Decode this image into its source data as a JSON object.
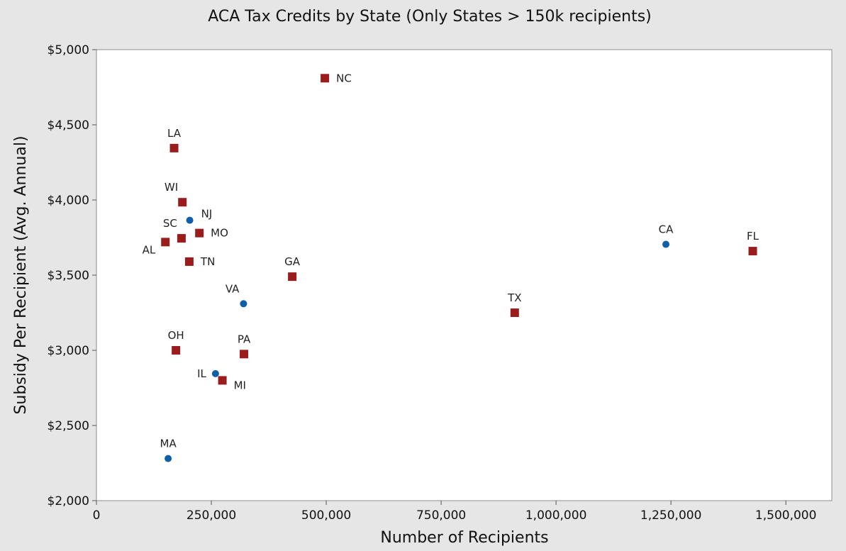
{
  "chart_data": {
    "type": "scatter",
    "title": "ACA Tax Credits by State (Only States > 150k recipients)",
    "xlabel": "Number of Recipients",
    "ylabel": "Subsidy Per Recipient (Avg. Annual)",
    "xlim": [
      0,
      1600000
    ],
    "ylim": [
      2000,
      5000
    ],
    "x_ticks": [
      0,
      250000,
      500000,
      750000,
      1000000,
      1250000,
      1500000
    ],
    "x_tick_labels": [
      "0",
      "250,000",
      "500,000",
      "750,000",
      "1,000,000",
      "1,250,000",
      "1,500,000"
    ],
    "y_ticks": [
      2000,
      2500,
      3000,
      3500,
      4000,
      4500,
      5000
    ],
    "y_tick_labels": [
      "$2,000",
      "$2,500",
      "$3,000",
      "$3,500",
      "$4,000",
      "$4,500",
      "$5,000"
    ],
    "grid": false,
    "colors": {
      "square": "#9b1c1c",
      "circle": "#0f5fa8"
    },
    "points": [
      {
        "label": "NC",
        "x": 497000,
        "y": 4810,
        "marker": "square"
      },
      {
        "label": "LA",
        "x": 169000,
        "y": 4345,
        "marker": "square"
      },
      {
        "label": "WI",
        "x": 187000,
        "y": 3985,
        "marker": "square"
      },
      {
        "label": "NJ",
        "x": 203000,
        "y": 3865,
        "marker": "circle"
      },
      {
        "label": "MO",
        "x": 224000,
        "y": 3780,
        "marker": "square"
      },
      {
        "label": "SC",
        "x": 185000,
        "y": 3745,
        "marker": "square"
      },
      {
        "label": "AL",
        "x": 150000,
        "y": 3720,
        "marker": "square"
      },
      {
        "label": "TN",
        "x": 202000,
        "y": 3590,
        "marker": "square"
      },
      {
        "label": "GA",
        "x": 426000,
        "y": 3490,
        "marker": "square"
      },
      {
        "label": "VA",
        "x": 320000,
        "y": 3310,
        "marker": "circle"
      },
      {
        "label": "OH",
        "x": 173000,
        "y": 3000,
        "marker": "square"
      },
      {
        "label": "PA",
        "x": 321000,
        "y": 2975,
        "marker": "square"
      },
      {
        "label": "IL",
        "x": 259000,
        "y": 2845,
        "marker": "circle"
      },
      {
        "label": "MI",
        "x": 274000,
        "y": 2800,
        "marker": "square"
      },
      {
        "label": "MA",
        "x": 156000,
        "y": 2280,
        "marker": "circle"
      },
      {
        "label": "TX",
        "x": 910000,
        "y": 3250,
        "marker": "square"
      },
      {
        "label": "CA",
        "x": 1239000,
        "y": 3705,
        "marker": "circle"
      },
      {
        "label": "FL",
        "x": 1428000,
        "y": 3660,
        "marker": "square"
      }
    ]
  }
}
